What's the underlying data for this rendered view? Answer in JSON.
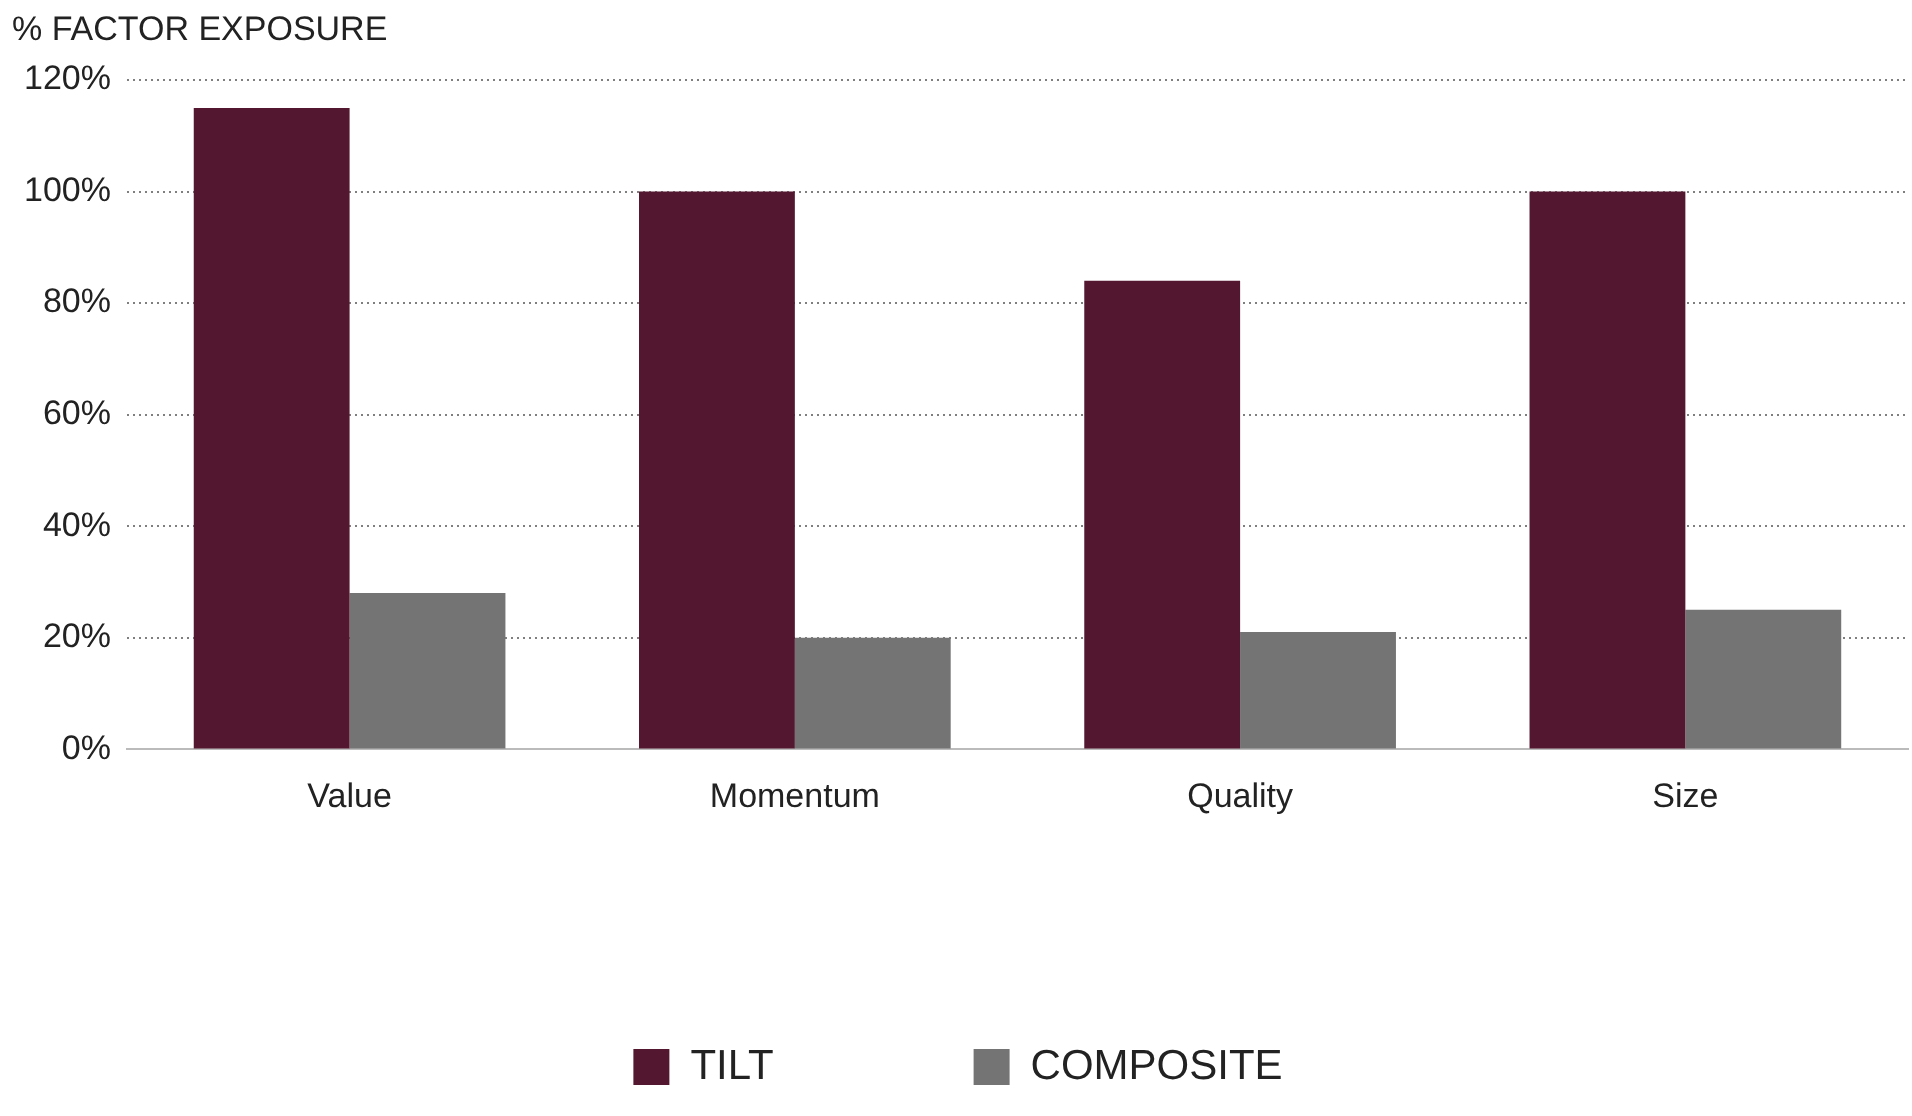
{
  "chart_data": {
    "type": "bar",
    "ylabel": "% FACTOR EXPOSURE",
    "categories": [
      "Value",
      "Momentum",
      "Quality",
      "Size"
    ],
    "series": [
      {
        "name": "TILT",
        "color": "#541730",
        "values": [
          115,
          100,
          84,
          100
        ]
      },
      {
        "name": "COMPOSITE",
        "color": "#747474",
        "values": [
          28,
          20,
          21,
          25
        ]
      }
    ],
    "ylim": [
      0,
      120
    ],
    "yticks": [
      {
        "value": 0,
        "label": "0%"
      },
      {
        "value": 20,
        "label": "20%"
      },
      {
        "value": 40,
        "label": "40%"
      },
      {
        "value": 60,
        "label": "60%"
      },
      {
        "value": 80,
        "label": "80%"
      },
      {
        "value": 100,
        "label": "100%"
      },
      {
        "value": 120,
        "label": "120%"
      }
    ],
    "grid": "y",
    "legend": "bottom"
  }
}
